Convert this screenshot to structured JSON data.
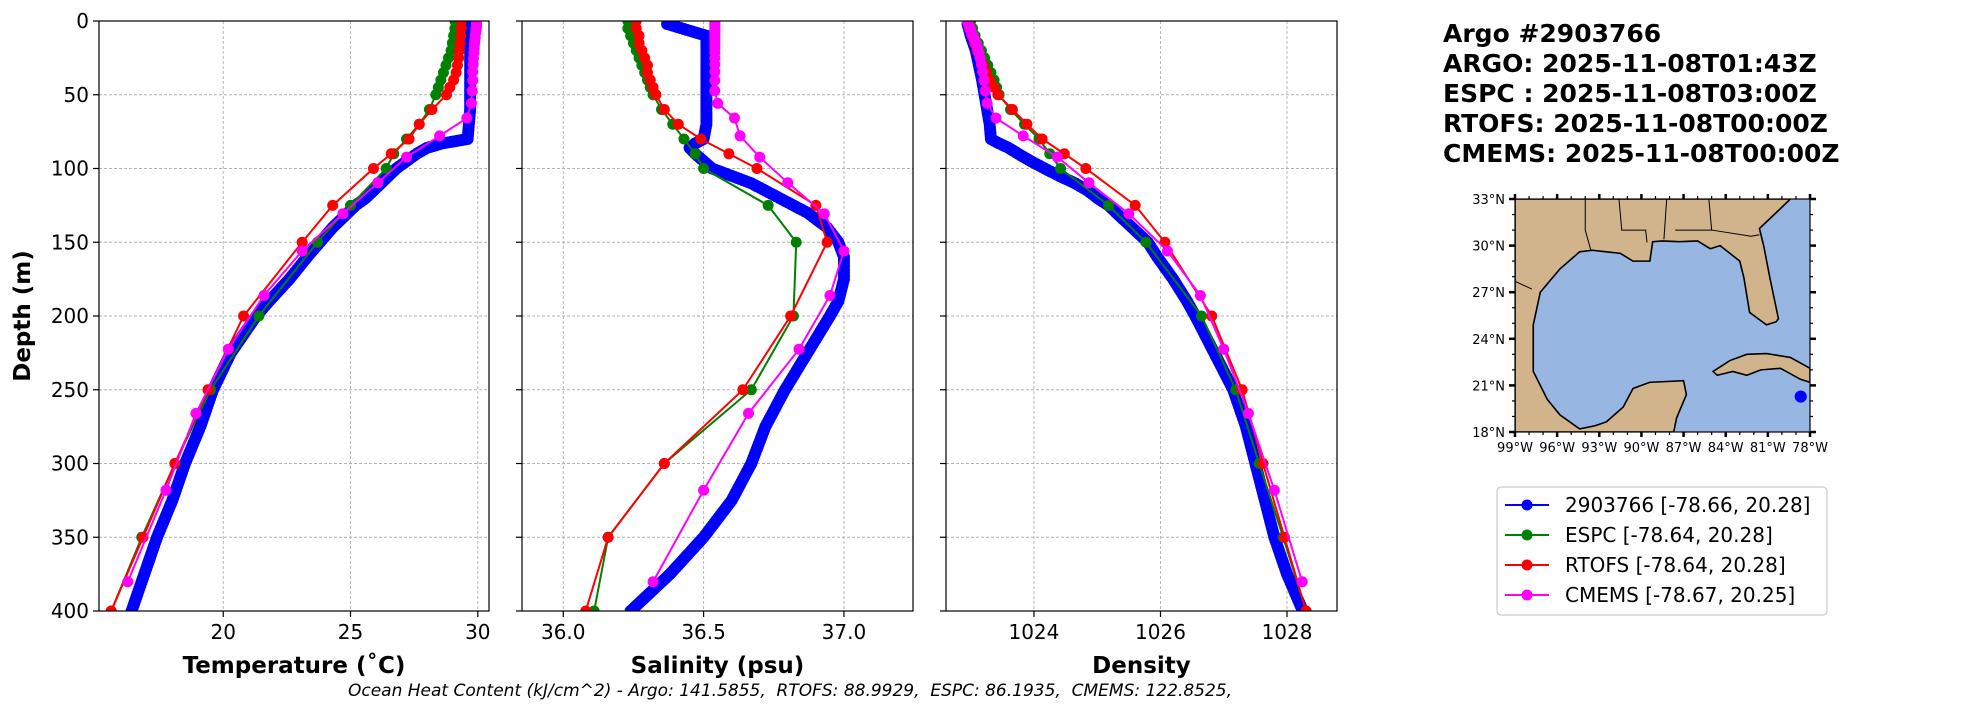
{
  "title": {
    "lines": [
      "Argo #2903766",
      "ARGO: 2025-11-08T01:43Z",
      "ESPC : 2025-11-08T03:00Z",
      "RTOFS: 2025-11-08T00:00Z",
      "CMEMS: 2025-11-08T00:00Z"
    ]
  },
  "footer": "Ocean Heat Content (kJ/cm^2) - Argo: 141.5855,  RTOFS: 88.9929,  ESPC: 86.1935,  CMEMS: 122.8525,",
  "colors": {
    "argo": "#0000ff",
    "espc": "#008000",
    "rtofs": "#ff0000",
    "cmems": "#ff00ff",
    "land": "#d2b48c",
    "water": "#97b6e1",
    "grid": "#b0b0b0"
  },
  "legend": {
    "placement": "right, below map",
    "entries": [
      {
        "label": "2903766 [-78.66, 20.28]",
        "color": "#0000ff"
      },
      {
        "label": "ESPC [-78.64, 20.28]",
        "color": "#008000"
      },
      {
        "label": "RTOFS [-78.64, 20.28]",
        "color": "#ff0000"
      },
      {
        "label": "CMEMS [-78.67, 20.25]",
        "color": "#ff00ff"
      }
    ]
  },
  "map": {
    "lon_range": [
      -99,
      -78
    ],
    "lat_range": [
      18,
      33
    ],
    "lon_ticks": [
      -99,
      -96,
      -93,
      -90,
      -87,
      -84,
      -81,
      -78
    ],
    "lon_tick_labels": [
      "99°W",
      "96°W",
      "93°W",
      "90°W",
      "87°W",
      "84°W",
      "81°W",
      "78°W"
    ],
    "lat_ticks": [
      33,
      30,
      27,
      24,
      21,
      18
    ],
    "lat_tick_labels": [
      "33°N",
      "30°N",
      "27°N",
      "24°N",
      "21°N",
      "18°N"
    ],
    "argo_position": [
      -78.66,
      20.28
    ]
  },
  "chart_data": [
    {
      "type": "line",
      "xlabel": "Temperature (˚C)",
      "ylabel": "Depth (m)",
      "xlim": [
        15.12,
        30.44
      ],
      "ylim": [
        400,
        0
      ],
      "xticks": [
        20,
        25,
        30
      ],
      "xtick_labels": [
        "20",
        "25",
        "30"
      ],
      "yticks": [
        0,
        50,
        100,
        150,
        200,
        250,
        300,
        350,
        400
      ],
      "ytick_labels": [
        "0",
        "50",
        "100",
        "150",
        "200",
        "250",
        "300",
        "350",
        "400"
      ],
      "grid": true,
      "series": [
        {
          "name": "2903766",
          "color": "#0000ff",
          "depth": [
            2,
            10,
            20,
            30,
            40,
            50,
            60,
            70,
            80,
            83,
            86,
            90,
            95,
            100,
            105,
            110,
            115,
            120,
            125,
            130,
            140,
            150,
            160,
            175,
            190,
            200,
            225,
            250,
            275,
            300,
            325,
            350,
            375,
            400
          ],
          "values": [
            29.7,
            29.7,
            29.7,
            29.7,
            29.7,
            29.7,
            29.7,
            29.65,
            29.6,
            28.6,
            28.0,
            27.6,
            27.2,
            26.8,
            26.5,
            26.2,
            25.9,
            25.6,
            25.2,
            24.9,
            24.3,
            23.8,
            23.3,
            22.6,
            21.8,
            21.3,
            20.3,
            19.6,
            19.1,
            18.5,
            18.0,
            17.4,
            16.9,
            16.4
          ]
        },
        {
          "name": "ESPC",
          "color": "#008000",
          "depth": [
            0,
            5,
            10,
            15,
            20,
            25,
            30,
            35,
            40,
            45,
            50,
            60,
            70,
            80,
            90,
            100,
            125,
            150,
            200,
            250,
            300,
            350,
            400
          ],
          "values": [
            29.1,
            29.1,
            29.05,
            29.0,
            28.95,
            28.85,
            28.75,
            28.65,
            28.55,
            28.45,
            28.35,
            28.1,
            27.7,
            27.2,
            26.7,
            26.4,
            25.0,
            23.7,
            21.4,
            19.5,
            18.1,
            16.8,
            15.6
          ]
        },
        {
          "name": "RTOFS",
          "color": "#ff0000",
          "depth": [
            0,
            5,
            10,
            15,
            20,
            25,
            30,
            35,
            40,
            45,
            50,
            60,
            70,
            80,
            90,
            100,
            125,
            150,
            200,
            250,
            300,
            350,
            400
          ],
          "values": [
            29.35,
            29.35,
            29.33,
            29.3,
            29.28,
            29.25,
            29.2,
            29.15,
            29.05,
            28.9,
            28.77,
            28.2,
            27.7,
            27.3,
            26.6,
            25.9,
            24.3,
            23.1,
            20.8,
            19.4,
            18.1,
            16.85,
            15.6
          ]
        },
        {
          "name": "CMEMS",
          "color": "#ff00ff",
          "depth": [
            0.5,
            1.5,
            2.6,
            3.8,
            5.1,
            6.4,
            7.9,
            9.6,
            11.4,
            13.5,
            15.8,
            18.5,
            21.6,
            25.2,
            29.4,
            34.4,
            40.3,
            47.4,
            55.8,
            65.8,
            77.9,
            92.3,
            109.7,
            130.7,
            155.9,
            186.1,
            222.5,
            266.0,
            318.1,
            380.2
          ],
          "values": [
            29.95,
            29.95,
            29.95,
            29.95,
            29.94,
            29.93,
            29.92,
            29.9,
            29.9,
            29.88,
            29.87,
            29.86,
            29.85,
            29.83,
            29.82,
            29.8,
            29.8,
            29.78,
            29.75,
            29.57,
            28.5,
            27.2,
            26.07,
            24.7,
            23.1,
            21.6,
            20.2,
            18.93,
            17.75,
            16.25
          ]
        }
      ]
    },
    {
      "type": "line",
      "xlabel": "Salinity (psu)",
      "ylabel": "",
      "xlim": [
        35.853,
        37.246
      ],
      "ylim": [
        400,
        0
      ],
      "xticks": [
        36.0,
        36.5,
        37.0
      ],
      "xtick_labels": [
        "36.0",
        "36.5",
        "37.0"
      ],
      "yticks": [
        0,
        50,
        100,
        150,
        200,
        250,
        300,
        350,
        400
      ],
      "grid": true,
      "series": [
        {
          "name": "2903766",
          "color": "#0000ff",
          "depth": [
            2,
            10,
            20,
            30,
            40,
            50,
            60,
            70,
            80,
            83,
            86,
            90,
            95,
            100,
            105,
            110,
            115,
            120,
            125,
            130,
            140,
            150,
            160,
            175,
            190,
            200,
            225,
            250,
            275,
            300,
            325,
            350,
            375,
            400
          ],
          "values": [
            36.37,
            36.51,
            36.51,
            36.51,
            36.51,
            36.51,
            36.51,
            36.51,
            36.5,
            36.47,
            36.45,
            36.47,
            36.5,
            36.53,
            36.6,
            36.67,
            36.72,
            36.77,
            36.82,
            36.87,
            36.94,
            36.98,
            37.0,
            37.0,
            36.98,
            36.95,
            36.87,
            36.79,
            36.72,
            36.67,
            36.6,
            36.5,
            36.38,
            36.24
          ]
        },
        {
          "name": "ESPC",
          "color": "#008000",
          "depth": [
            0,
            5,
            10,
            15,
            20,
            25,
            30,
            35,
            40,
            45,
            50,
            60,
            70,
            80,
            90,
            100,
            125,
            150,
            200,
            250,
            300,
            350,
            400
          ],
          "values": [
            36.23,
            36.23,
            36.24,
            36.25,
            36.26,
            36.27,
            36.28,
            36.29,
            36.3,
            36.31,
            36.32,
            36.35,
            36.39,
            36.43,
            36.47,
            36.5,
            36.73,
            36.83,
            36.82,
            36.67,
            36.36,
            36.16,
            36.11
          ]
        },
        {
          "name": "RTOFS",
          "color": "#ff0000",
          "depth": [
            0,
            5,
            10,
            15,
            20,
            25,
            30,
            35,
            40,
            45,
            50,
            60,
            70,
            80,
            90,
            100,
            125,
            150,
            200,
            250,
            300,
            350,
            400
          ],
          "values": [
            36.26,
            36.26,
            36.27,
            36.27,
            36.28,
            36.29,
            36.3,
            36.3,
            36.31,
            36.32,
            36.33,
            36.36,
            36.41,
            36.49,
            36.59,
            36.69,
            36.9,
            36.94,
            36.81,
            36.64,
            36.36,
            36.16,
            36.08
          ]
        },
        {
          "name": "CMEMS",
          "color": "#ff00ff",
          "depth": [
            0.5,
            1.5,
            2.6,
            3.8,
            5.1,
            6.4,
            7.9,
            9.6,
            11.4,
            13.5,
            15.8,
            18.5,
            21.6,
            25.2,
            29.4,
            34.4,
            40.3,
            47.4,
            55.8,
            65.8,
            77.9,
            92.3,
            109.7,
            130.7,
            155.9,
            186.1,
            222.5,
            266.0,
            318.1,
            380.2
          ],
          "values": [
            36.54,
            36.54,
            36.54,
            36.54,
            36.54,
            36.54,
            36.54,
            36.54,
            36.54,
            36.54,
            36.54,
            36.54,
            36.54,
            36.54,
            36.54,
            36.54,
            36.54,
            36.54,
            36.55,
            36.61,
            36.63,
            36.7,
            36.8,
            36.93,
            37.0,
            36.95,
            36.84,
            36.66,
            36.5,
            36.32
          ]
        }
      ]
    },
    {
      "type": "line",
      "xlabel": "Density",
      "ylabel": "",
      "xlim": [
        1022.61,
        1028.79
      ],
      "ylim": [
        400,
        0
      ],
      "xticks": [
        1024,
        1026,
        1028
      ],
      "xtick_labels": [
        "1024",
        "1026",
        "1028"
      ],
      "yticks": [
        0,
        50,
        100,
        150,
        200,
        250,
        300,
        350,
        400
      ],
      "grid": true,
      "series": [
        {
          "name": "2903766",
          "color": "#0000ff",
          "depth": [
            2,
            10,
            20,
            30,
            40,
            50,
            60,
            70,
            80,
            83,
            86,
            90,
            95,
            100,
            105,
            110,
            115,
            120,
            125,
            130,
            140,
            150,
            160,
            175,
            190,
            200,
            225,
            250,
            275,
            300,
            325,
            350,
            375,
            400
          ],
          "values": [
            1022.95,
            1023.0,
            1023.08,
            1023.13,
            1023.18,
            1023.22,
            1023.26,
            1023.3,
            1023.32,
            1023.45,
            1023.6,
            1023.75,
            1023.95,
            1024.17,
            1024.4,
            1024.65,
            1024.85,
            1025.0,
            1025.18,
            1025.3,
            1025.55,
            1025.8,
            1025.95,
            1026.2,
            1026.42,
            1026.55,
            1026.85,
            1027.15,
            1027.35,
            1027.5,
            1027.65,
            1027.8,
            1028.0,
            1028.25
          ]
        },
        {
          "name": "ESPC",
          "color": "#008000",
          "depth": [
            0,
            5,
            10,
            15,
            20,
            25,
            30,
            35,
            40,
            45,
            50,
            60,
            70,
            80,
            90,
            100,
            125,
            150,
            200,
            250,
            300,
            350,
            400
          ],
          "values": [
            1023.0,
            1023.03,
            1023.07,
            1023.12,
            1023.17,
            1023.22,
            1023.27,
            1023.32,
            1023.37,
            1023.41,
            1023.45,
            1023.63,
            1023.85,
            1024.08,
            1024.25,
            1024.42,
            1025.18,
            1025.77,
            1026.65,
            1027.19,
            1027.56,
            1027.94,
            1028.3
          ]
        },
        {
          "name": "RTOFS",
          "color": "#ff0000",
          "depth": [
            0,
            5,
            10,
            15,
            20,
            25,
            30,
            35,
            40,
            45,
            50,
            60,
            70,
            80,
            90,
            100,
            125,
            150,
            200,
            250,
            300,
            350,
            400
          ],
          "values": [
            1022.95,
            1022.98,
            1023.02,
            1023.06,
            1023.1,
            1023.15,
            1023.2,
            1023.25,
            1023.3,
            1023.37,
            1023.43,
            1023.66,
            1023.89,
            1024.13,
            1024.48,
            1024.82,
            1025.6,
            1026.07,
            1026.81,
            1027.29,
            1027.62,
            1027.96,
            1028.3
          ]
        },
        {
          "name": "CMEMS",
          "color": "#ff00ff",
          "depth": [
            0.5,
            1.5,
            2.6,
            3.8,
            5.1,
            6.4,
            7.9,
            9.6,
            11.4,
            13.5,
            15.8,
            18.5,
            21.6,
            25.2,
            29.4,
            34.4,
            40.3,
            47.4,
            55.8,
            65.8,
            77.9,
            92.3,
            109.7,
            130.7,
            155.9,
            186.1,
            222.5,
            266.0,
            318.1,
            380.2
          ],
          "values": [
            1022.95,
            1022.96,
            1022.97,
            1022.98,
            1022.99,
            1023.0,
            1023.01,
            1023.03,
            1023.05,
            1023.07,
            1023.09,
            1023.11,
            1023.13,
            1023.15,
            1023.17,
            1023.19,
            1023.21,
            1023.23,
            1023.26,
            1023.4,
            1023.83,
            1024.37,
            1024.87,
            1025.5,
            1026.11,
            1026.63,
            1027.0,
            1027.39,
            1027.8,
            1028.24
          ]
        }
      ]
    }
  ]
}
